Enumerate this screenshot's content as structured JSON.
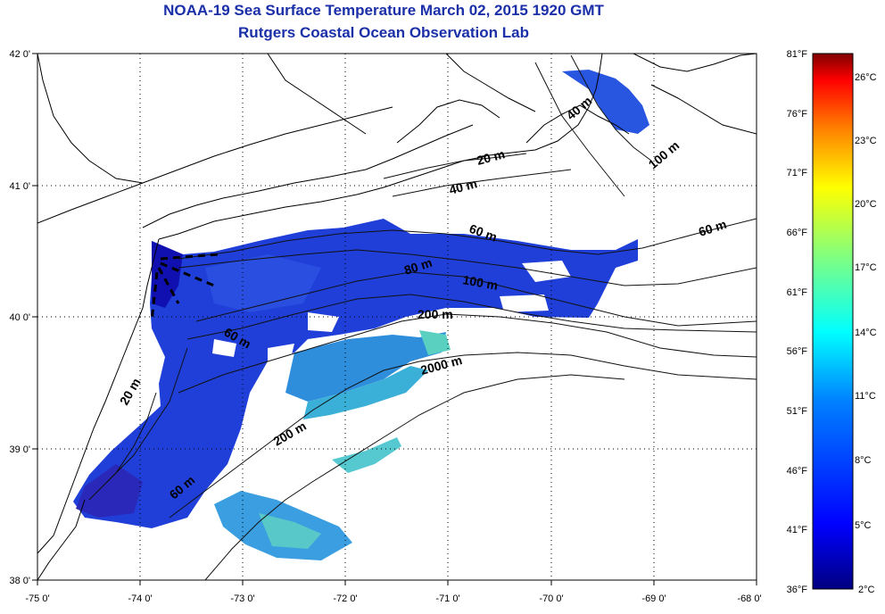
{
  "title": "NOAA-19 Sea Surface Temperature March 02, 2015 1920 GMT",
  "subtitle": "Rutgers Coastal Ocean Observation Lab",
  "x_ticks": [
    "-75 0'",
    "-74 0'",
    "-73 0'",
    "-72 0'",
    "-71 0'",
    "-70 0'",
    "-69 0'",
    "-68 0'"
  ],
  "y_ticks": [
    "42 0'",
    "41 0'",
    "40 0'",
    "39 0'",
    "38 0'"
  ],
  "colorbar": {
    "f_labels": [
      "81°F",
      "76°F",
      "71°F",
      "66°F",
      "61°F",
      "56°F",
      "51°F",
      "46°F",
      "41°F",
      "36°F"
    ],
    "c_labels": [
      "26°C",
      "23°C",
      "20°C",
      "17°C",
      "14°C",
      "11°C",
      "8°C",
      "5°C",
      "2°C"
    ],
    "colors": [
      "#800000",
      "#ff0000",
      "#ff8000",
      "#ffff00",
      "#80ff80",
      "#00ffff",
      "#0080ff",
      "#0000ff",
      "#000080"
    ]
  },
  "contour_labels": [
    "20 m",
    "40 m",
    "40 m",
    "100 m",
    "60 m",
    "60 m",
    "80 m",
    "100 m",
    "200 m",
    "2000 m",
    "60 m",
    "20 m",
    "200 m",
    "60 m"
  ],
  "map_extent": {
    "lon": [
      -75,
      -68
    ],
    "lat": [
      38,
      42
    ]
  },
  "colors": {
    "title": "#1a2fa8",
    "land_outline": "#000000"
  }
}
